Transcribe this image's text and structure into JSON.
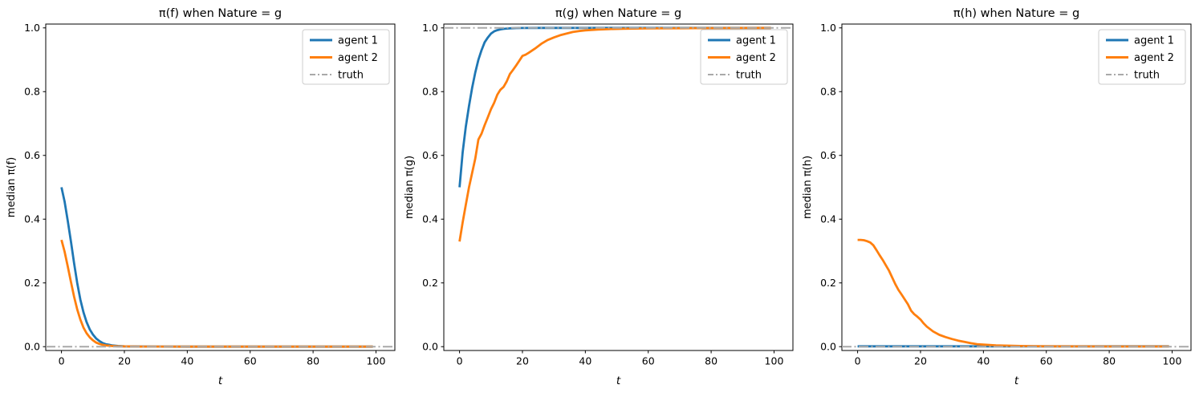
{
  "figure": {
    "background": "#ffffff",
    "colors": {
      "agent1": "#1f77b4",
      "agent2": "#ff7f0e",
      "truth": "#a9a9a9"
    }
  },
  "chart_data": [
    {
      "type": "line",
      "title": "π(f) when Nature = g",
      "xlabel": "t",
      "ylabel": "median π(f)",
      "xlim": [
        -5,
        106
      ],
      "ylim": [
        -0.012,
        1.012
      ],
      "grid": false,
      "legend_position": "upper right",
      "xticks": [
        0,
        20,
        40,
        60,
        80,
        100
      ],
      "xtick_labels": [
        "0",
        "20",
        "40",
        "60",
        "80",
        "100"
      ],
      "yticks": [
        0.0,
        0.2,
        0.4,
        0.6,
        0.8,
        1.0
      ],
      "ytick_labels": [
        "0.0",
        "0.2",
        "0.4",
        "0.6",
        "0.8",
        "1.0"
      ],
      "series": [
        {
          "name": "agent 1",
          "color": "#1f77b4",
          "dash": "solid",
          "width": 2.8,
          "x": [
            0,
            1,
            2,
            3,
            4,
            5,
            6,
            7,
            8,
            9,
            10,
            11,
            12,
            13,
            14,
            15,
            16,
            18,
            20,
            25,
            30,
            40,
            50,
            60,
            70,
            80,
            90,
            99
          ],
          "y": [
            0.5,
            0.455,
            0.395,
            0.33,
            0.262,
            0.2,
            0.148,
            0.108,
            0.077,
            0.054,
            0.038,
            0.026,
            0.018,
            0.012,
            0.008,
            0.006,
            0.004,
            0.002,
            0.001,
            0.0005,
            0.0003,
            0.0002,
            0.0002,
            0.0002,
            0.0002,
            0.0002,
            0.0002,
            0.0002
          ]
        },
        {
          "name": "agent 2",
          "color": "#ff7f0e",
          "dash": "solid",
          "width": 2.8,
          "x": [
            0,
            1,
            2,
            3,
            4,
            5,
            6,
            7,
            8,
            9,
            10,
            11,
            12,
            13,
            14,
            15,
            16,
            18,
            20,
            25,
            30,
            40,
            50,
            60,
            70,
            80,
            90,
            99
          ],
          "y": [
            0.335,
            0.298,
            0.252,
            0.203,
            0.157,
            0.117,
            0.085,
            0.06,
            0.042,
            0.029,
            0.02,
            0.013,
            0.009,
            0.006,
            0.004,
            0.003,
            0.002,
            0.0012,
            0.0008,
            0.0004,
            0.0003,
            0.0002,
            0.0002,
            0.0002,
            0.0002,
            0.0002,
            0.0002,
            0.0002
          ]
        },
        {
          "name": "truth",
          "color": "#a9a9a9",
          "dash": "dashdot",
          "width": 2,
          "x": [
            -5,
            106
          ],
          "y": [
            0.0,
            0.0
          ]
        }
      ]
    },
    {
      "type": "line",
      "title": "π(g) when Nature = g",
      "xlabel": "t",
      "ylabel": "median π(g)",
      "xlim": [
        -5,
        106
      ],
      "ylim": [
        -0.012,
        1.012
      ],
      "grid": false,
      "legend_position": "upper right",
      "xticks": [
        0,
        20,
        40,
        60,
        80,
        100
      ],
      "xtick_labels": [
        "0",
        "20",
        "40",
        "60",
        "80",
        "100"
      ],
      "yticks": [
        0.0,
        0.2,
        0.4,
        0.6,
        0.8,
        1.0
      ],
      "ytick_labels": [
        "0.0",
        "0.2",
        "0.4",
        "0.6",
        "0.8",
        "1.0"
      ],
      "series": [
        {
          "name": "agent 1",
          "color": "#1f77b4",
          "dash": "solid",
          "width": 2.8,
          "x": [
            0,
            1,
            2,
            3,
            4,
            5,
            6,
            7,
            8,
            9,
            10,
            11,
            12,
            13,
            14,
            15,
            16,
            18,
            20,
            25,
            30,
            40,
            50,
            60,
            70,
            80,
            90,
            99
          ],
          "y": [
            0.5,
            0.61,
            0.69,
            0.755,
            0.812,
            0.86,
            0.9,
            0.93,
            0.955,
            0.97,
            0.982,
            0.989,
            0.993,
            0.9955,
            0.997,
            0.998,
            0.9987,
            0.9994,
            0.9997,
            1.0,
            1.0,
            1.0,
            1.0,
            1.0,
            1.0,
            1.0,
            1.0,
            1.0
          ]
        },
        {
          "name": "agent 2",
          "color": "#ff7f0e",
          "dash": "solid",
          "width": 2.8,
          "x": [
            0,
            1,
            2,
            3,
            4,
            5,
            6,
            7,
            8,
            9,
            10,
            11,
            12,
            13,
            14,
            15,
            16,
            17,
            18,
            19,
            20,
            21,
            22,
            24,
            26,
            28,
            30,
            32,
            34,
            36,
            38,
            40,
            44,
            48,
            52,
            56,
            60,
            70,
            80,
            90,
            99
          ],
          "y": [
            0.33,
            0.39,
            0.445,
            0.5,
            0.545,
            0.59,
            0.65,
            0.668,
            0.695,
            0.72,
            0.745,
            0.765,
            0.79,
            0.806,
            0.815,
            0.832,
            0.855,
            0.868,
            0.882,
            0.897,
            0.912,
            0.916,
            0.922,
            0.935,
            0.95,
            0.962,
            0.97,
            0.977,
            0.982,
            0.987,
            0.99,
            0.992,
            0.995,
            0.9965,
            0.9975,
            0.998,
            0.9985,
            0.999,
            0.9995,
            0.9997,
            0.9998
          ]
        },
        {
          "name": "truth",
          "color": "#a9a9a9",
          "dash": "dashdot",
          "width": 2,
          "x": [
            -5,
            106
          ],
          "y": [
            1.0,
            1.0
          ]
        }
      ]
    },
    {
      "type": "line",
      "title": "π(h) when Nature = g",
      "xlabel": "t",
      "ylabel": "median π(h)",
      "xlim": [
        -5,
        106
      ],
      "ylim": [
        -0.012,
        1.012
      ],
      "grid": false,
      "legend_position": "upper right",
      "xticks": [
        0,
        20,
        40,
        60,
        80,
        100
      ],
      "xtick_labels": [
        "0",
        "20",
        "40",
        "60",
        "80",
        "100"
      ],
      "yticks": [
        0.0,
        0.2,
        0.4,
        0.6,
        0.8,
        1.0
      ],
      "ytick_labels": [
        "0.0",
        "0.2",
        "0.4",
        "0.6",
        "0.8",
        "1.0"
      ],
      "series": [
        {
          "name": "agent 1",
          "color": "#1f77b4",
          "dash": "solid",
          "width": 2.8,
          "x": [
            0,
            99
          ],
          "y": [
            0.001,
            0.001
          ]
        },
        {
          "name": "agent 2",
          "color": "#ff7f0e",
          "dash": "solid",
          "width": 2.8,
          "x": [
            0,
            1,
            2,
            3,
            4,
            5,
            6,
            7,
            8,
            9,
            10,
            11,
            12,
            13,
            14,
            15,
            16,
            17,
            18,
            19,
            20,
            21,
            22,
            24,
            26,
            28,
            30,
            32,
            34,
            36,
            38,
            40,
            44,
            48,
            52,
            56,
            60,
            70,
            80,
            90,
            99
          ],
          "y": [
            0.335,
            0.335,
            0.334,
            0.331,
            0.327,
            0.318,
            0.303,
            0.287,
            0.272,
            0.255,
            0.238,
            0.217,
            0.196,
            0.178,
            0.163,
            0.148,
            0.133,
            0.113,
            0.102,
            0.094,
            0.085,
            0.073,
            0.063,
            0.048,
            0.037,
            0.03,
            0.024,
            0.019,
            0.015,
            0.011,
            0.008,
            0.0065,
            0.004,
            0.003,
            0.002,
            0.0015,
            0.001,
            0.0008,
            0.0006,
            0.0005,
            0.0005
          ]
        },
        {
          "name": "truth",
          "color": "#a9a9a9",
          "dash": "dashdot",
          "width": 2,
          "x": [
            -5,
            106
          ],
          "y": [
            0.0,
            0.0
          ]
        }
      ]
    }
  ]
}
